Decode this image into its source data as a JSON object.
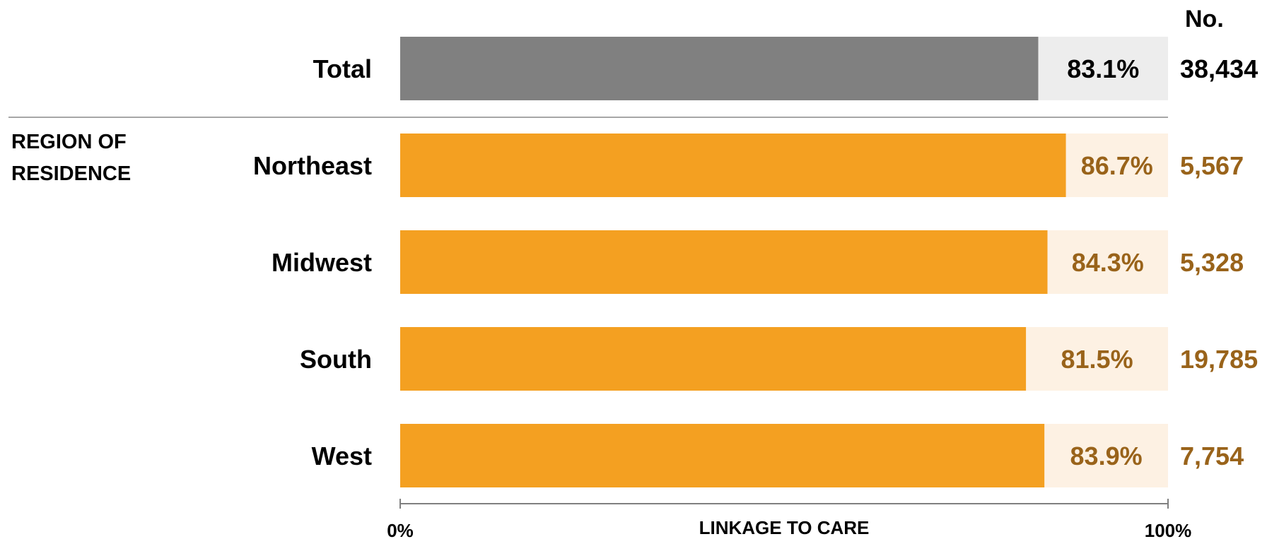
{
  "chart_data": {
    "type": "bar",
    "orientation": "horizontal",
    "xlabel": "LINKAGE TO CARE",
    "xlim": [
      0,
      100
    ],
    "x_tick_labels": [
      "0%",
      "100%"
    ],
    "count_header": "No.",
    "group_label_lines": [
      "REGION OF",
      "RESIDENCE"
    ],
    "rows": [
      {
        "label": "Total",
        "value": 83.1,
        "value_label": "83.1%",
        "count": "38,434",
        "kind": "total"
      },
      {
        "label": "Northeast",
        "value": 86.7,
        "value_label": "86.7%",
        "count": "5,567",
        "kind": "region"
      },
      {
        "label": "Midwest",
        "value": 84.3,
        "value_label": "84.3%",
        "count": "5,328",
        "kind": "region"
      },
      {
        "label": "South",
        "value": 81.5,
        "value_label": "81.5%",
        "count": "19,785",
        "kind": "region"
      },
      {
        "label": "West",
        "value": 83.9,
        "value_label": "83.9%",
        "count": "7,754",
        "kind": "region"
      }
    ]
  },
  "colors": {
    "total_bar": "#808080",
    "total_track": "#ededed",
    "total_text": "#000000",
    "region_bar": "#f4a021",
    "region_track": "#fdf1e3",
    "region_text": "#99631a",
    "divider": "#a6a6a6",
    "axis": "#808080"
  }
}
